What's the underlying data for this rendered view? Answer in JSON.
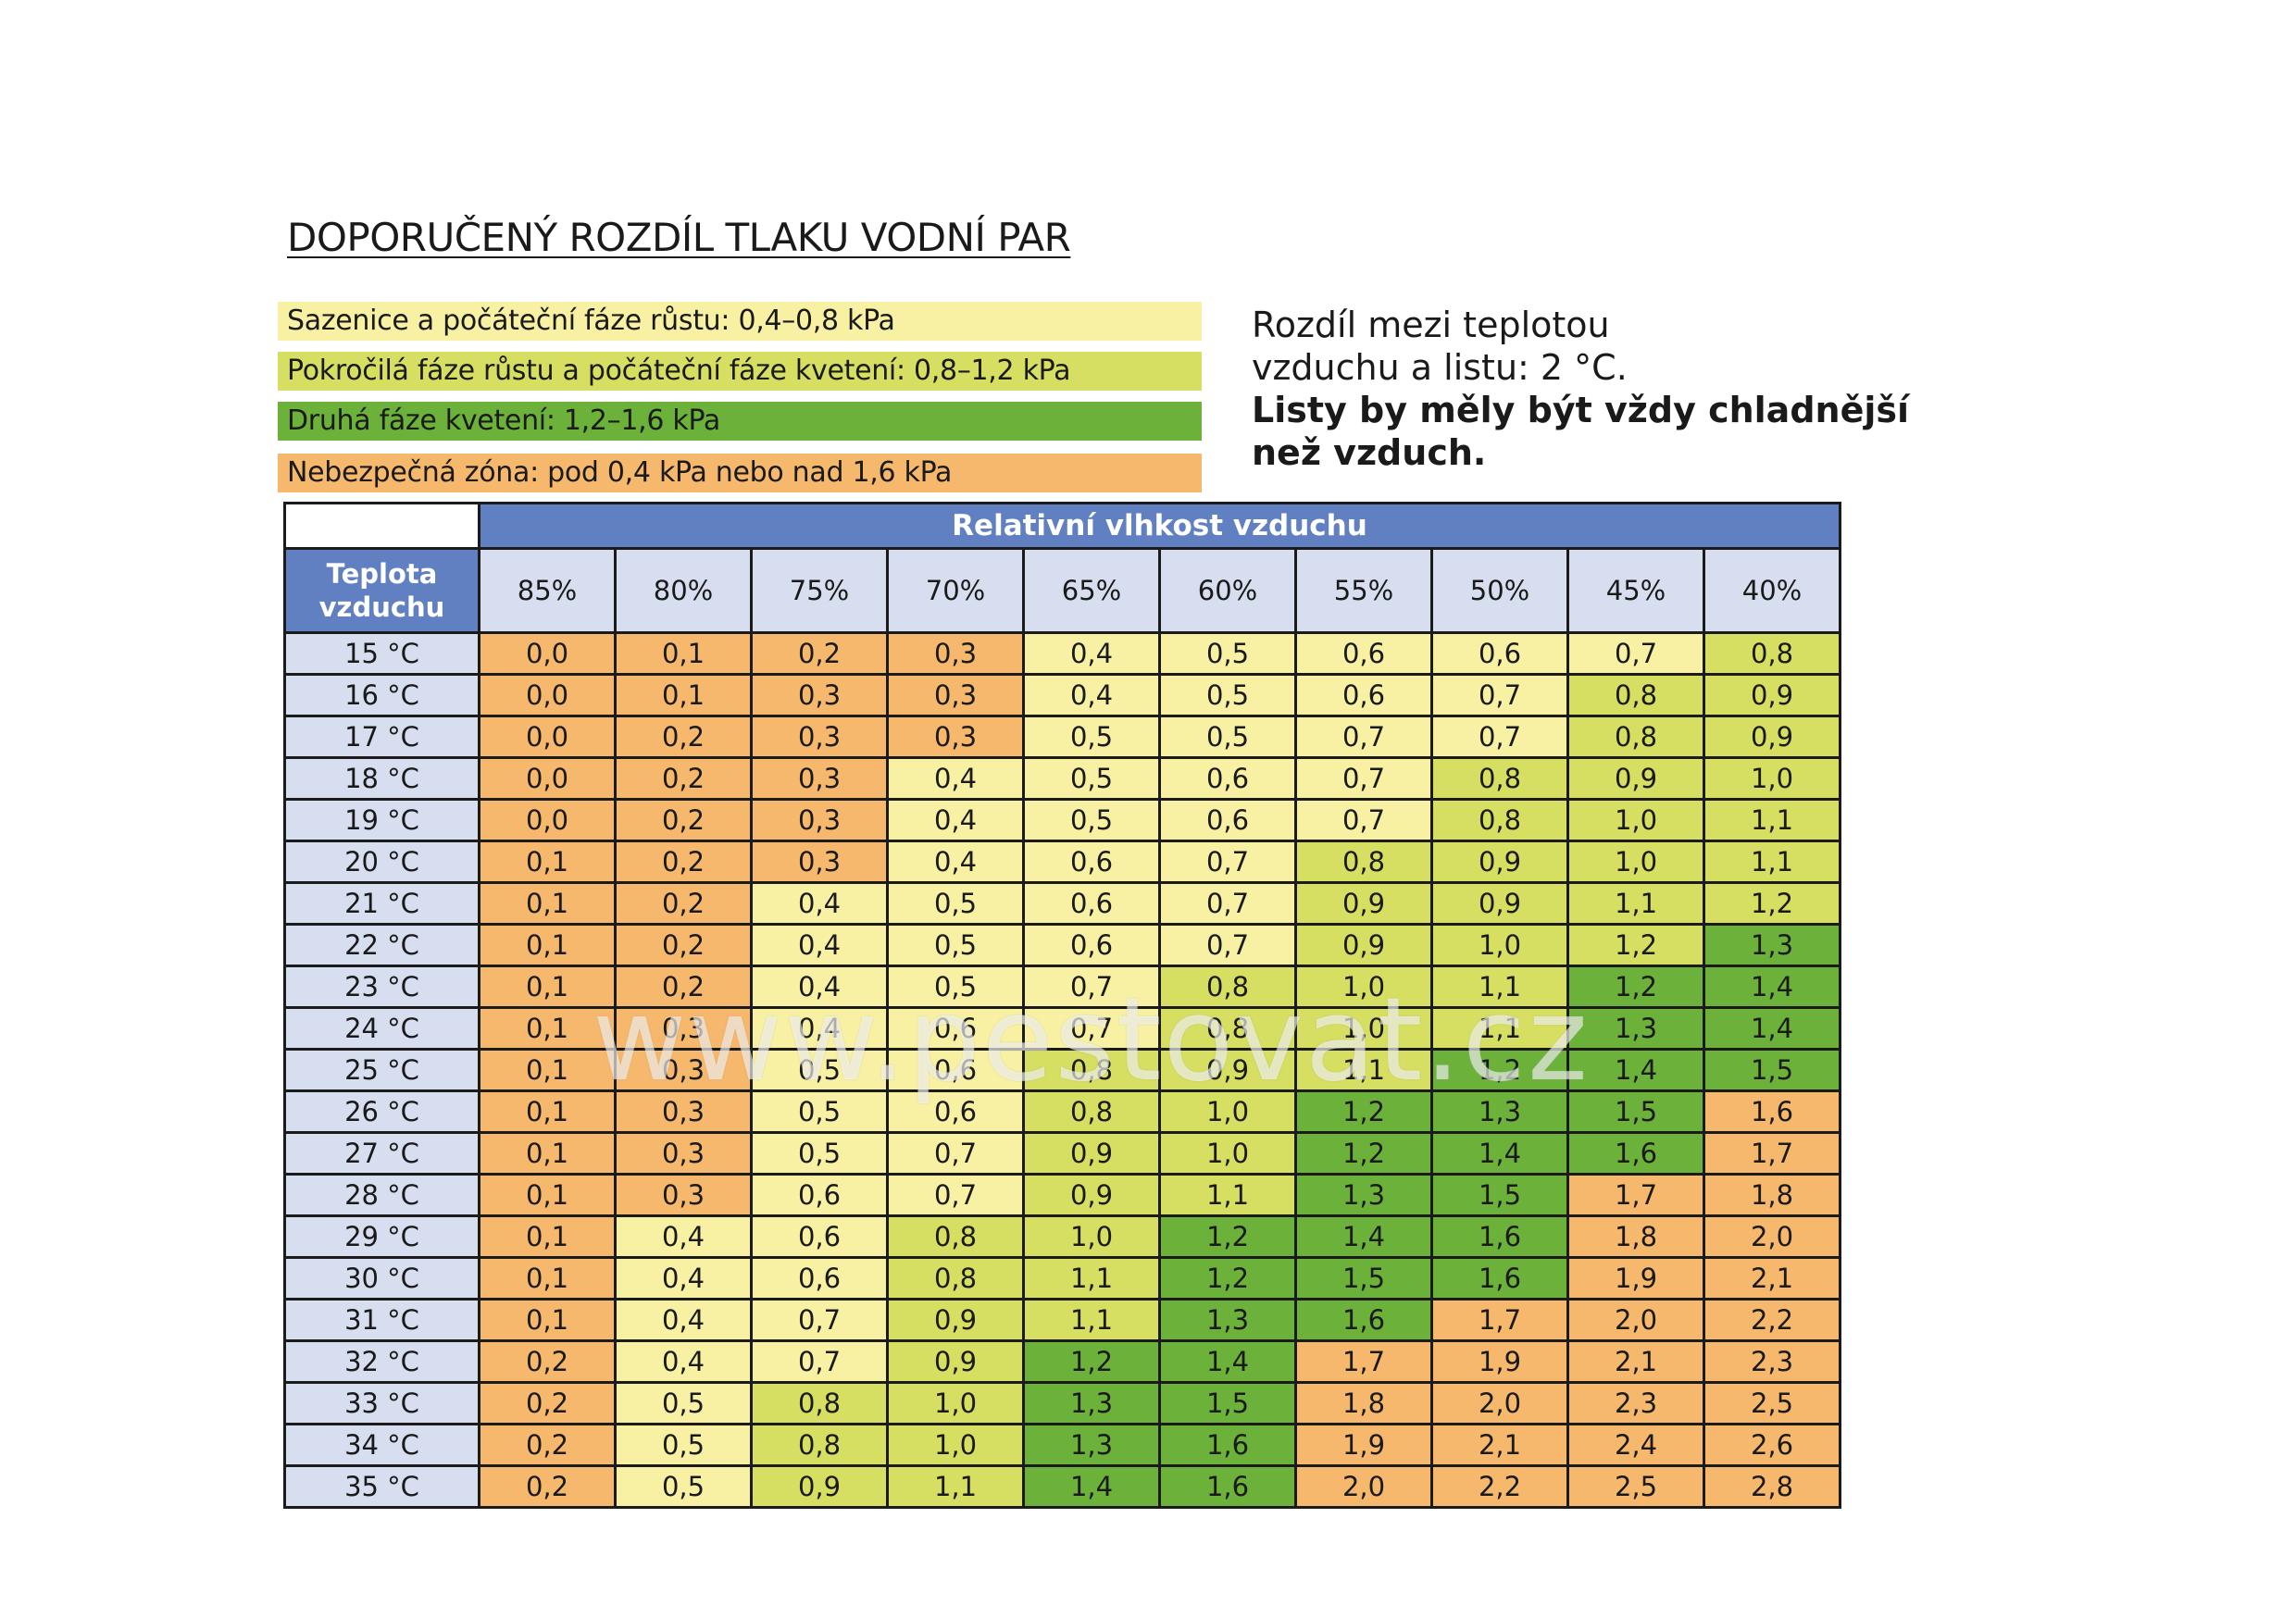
{
  "title": "DOPORUČENÝ ROZDÍL TLAKU VODNÍ PAR",
  "legend": [
    {
      "label": "Sazenice a počáteční fáze růstu: 0,4–0,8 kPa",
      "color": "#f8f1a4"
    },
    {
      "label": "Pokročilá fáze růstu a počáteční fáze kvetení: 0,8–1,2 kPa",
      "color": "#d6df62"
    },
    {
      "label": "Druhá fáze kvetení: 1,2–1,6 kPa",
      "color": "#6cb23a"
    },
    {
      "label": "Nebezpečná zóna: pod 0,4 kPa nebo nad 1,6 kPa",
      "color": "#f6b86c"
    }
  ],
  "note": {
    "line1": "Rozdíl mezi teplotou",
    "line2": "vzduchu a listu: 2 °C.",
    "bold": "Listy by měly být vždy chladnější než vzduch."
  },
  "table": {
    "group_header": "Relativní vlhkost vzduchu",
    "row_header_line1": "Teplota",
    "row_header_line2": "vzduchu",
    "columns": [
      "85%",
      "80%",
      "75%",
      "70%",
      "65%",
      "60%",
      "55%",
      "50%",
      "45%",
      "40%"
    ],
    "zone_colors": {
      "0": "#f6b86c",
      "1": "#f8f1a4",
      "2": "#d6df62",
      "3": "#6cb23a"
    },
    "rows": [
      {
        "temp": "15 °C",
        "values": [
          "0,0",
          "0,1",
          "0,2",
          "0,3",
          "0,4",
          "0,5",
          "0,6",
          "0,6",
          "0,7",
          "0,8"
        ],
        "zones": [
          0,
          0,
          0,
          0,
          1,
          1,
          1,
          1,
          1,
          2
        ]
      },
      {
        "temp": "16 °C",
        "values": [
          "0,0",
          "0,1",
          "0,3",
          "0,3",
          "0,4",
          "0,5",
          "0,6",
          "0,7",
          "0,8",
          "0,9"
        ],
        "zones": [
          0,
          0,
          0,
          0,
          1,
          1,
          1,
          1,
          2,
          2
        ]
      },
      {
        "temp": "17 °C",
        "values": [
          "0,0",
          "0,2",
          "0,3",
          "0,3",
          "0,5",
          "0,5",
          "0,7",
          "0,7",
          "0,8",
          "0,9"
        ],
        "zones": [
          0,
          0,
          0,
          0,
          1,
          1,
          1,
          1,
          2,
          2
        ]
      },
      {
        "temp": "18 °C",
        "values": [
          "0,0",
          "0,2",
          "0,3",
          "0,4",
          "0,5",
          "0,6",
          "0,7",
          "0,8",
          "0,9",
          "1,0"
        ],
        "zones": [
          0,
          0,
          0,
          1,
          1,
          1,
          1,
          2,
          2,
          2
        ]
      },
      {
        "temp": "19 °C",
        "values": [
          "0,0",
          "0,2",
          "0,3",
          "0,4",
          "0,5",
          "0,6",
          "0,7",
          "0,8",
          "1,0",
          "1,1"
        ],
        "zones": [
          0,
          0,
          0,
          1,
          1,
          1,
          1,
          2,
          2,
          2
        ]
      },
      {
        "temp": "20 °C",
        "values": [
          "0,1",
          "0,2",
          "0,3",
          "0,4",
          "0,6",
          "0,7",
          "0,8",
          "0,9",
          "1,0",
          "1,1"
        ],
        "zones": [
          0,
          0,
          0,
          1,
          1,
          1,
          2,
          2,
          2,
          2
        ]
      },
      {
        "temp": "21 °C",
        "values": [
          "0,1",
          "0,2",
          "0,4",
          "0,5",
          "0,6",
          "0,7",
          "0,9",
          "0,9",
          "1,1",
          "1,2"
        ],
        "zones": [
          0,
          0,
          1,
          1,
          1,
          1,
          2,
          2,
          2,
          2
        ]
      },
      {
        "temp": "22 °C",
        "values": [
          "0,1",
          "0,2",
          "0,4",
          "0,5",
          "0,6",
          "0,7",
          "0,9",
          "1,0",
          "1,2",
          "1,3"
        ],
        "zones": [
          0,
          0,
          1,
          1,
          1,
          1,
          2,
          2,
          2,
          3
        ]
      },
      {
        "temp": "23 °C",
        "values": [
          "0,1",
          "0,2",
          "0,4",
          "0,5",
          "0,7",
          "0,8",
          "1,0",
          "1,1",
          "1,2",
          "1,4"
        ],
        "zones": [
          0,
          0,
          1,
          1,
          1,
          2,
          2,
          2,
          3,
          3
        ]
      },
      {
        "temp": "24 °C",
        "values": [
          "0,1",
          "0,3",
          "0,4",
          "0,6",
          "0,7",
          "0,8",
          "1,0",
          "1,1",
          "1,3",
          "1,4"
        ],
        "zones": [
          0,
          0,
          1,
          1,
          1,
          2,
          2,
          2,
          3,
          3
        ]
      },
      {
        "temp": "25 °C",
        "values": [
          "0,1",
          "0,3",
          "0,5",
          "0,6",
          "0,8",
          "0,9",
          "1,1",
          "1,2",
          "1,4",
          "1,5"
        ],
        "zones": [
          0,
          0,
          1,
          1,
          2,
          2,
          2,
          3,
          3,
          3
        ]
      },
      {
        "temp": "26 °C",
        "values": [
          "0,1",
          "0,3",
          "0,5",
          "0,6",
          "0,8",
          "1,0",
          "1,2",
          "1,3",
          "1,5",
          "1,6"
        ],
        "zones": [
          0,
          0,
          1,
          1,
          2,
          2,
          3,
          3,
          3,
          0
        ]
      },
      {
        "temp": "27 °C",
        "values": [
          "0,1",
          "0,3",
          "0,5",
          "0,7",
          "0,9",
          "1,0",
          "1,2",
          "1,4",
          "1,6",
          "1,7"
        ],
        "zones": [
          0,
          0,
          1,
          1,
          2,
          2,
          3,
          3,
          3,
          0
        ]
      },
      {
        "temp": "28 °C",
        "values": [
          "0,1",
          "0,3",
          "0,6",
          "0,7",
          "0,9",
          "1,1",
          "1,3",
          "1,5",
          "1,7",
          "1,8"
        ],
        "zones": [
          0,
          0,
          1,
          1,
          2,
          2,
          3,
          3,
          0,
          0
        ]
      },
      {
        "temp": "29 °C",
        "values": [
          "0,1",
          "0,4",
          "0,6",
          "0,8",
          "1,0",
          "1,2",
          "1,4",
          "1,6",
          "1,8",
          "2,0"
        ],
        "zones": [
          0,
          1,
          1,
          2,
          2,
          3,
          3,
          3,
          0,
          0
        ]
      },
      {
        "temp": "30 °C",
        "values": [
          "0,1",
          "0,4",
          "0,6",
          "0,8",
          "1,1",
          "1,2",
          "1,5",
          "1,6",
          "1,9",
          "2,1"
        ],
        "zones": [
          0,
          1,
          1,
          2,
          2,
          3,
          3,
          3,
          0,
          0
        ]
      },
      {
        "temp": "31 °C",
        "values": [
          "0,1",
          "0,4",
          "0,7",
          "0,9",
          "1,1",
          "1,3",
          "1,6",
          "1,7",
          "2,0",
          "2,2"
        ],
        "zones": [
          0,
          1,
          1,
          2,
          2,
          3,
          3,
          0,
          0,
          0
        ]
      },
      {
        "temp": "32 °C",
        "values": [
          "0,2",
          "0,4",
          "0,7",
          "0,9",
          "1,2",
          "1,4",
          "1,7",
          "1,9",
          "2,1",
          "2,3"
        ],
        "zones": [
          0,
          1,
          1,
          2,
          3,
          3,
          0,
          0,
          0,
          0
        ]
      },
      {
        "temp": "33 °C",
        "values": [
          "0,2",
          "0,5",
          "0,8",
          "1,0",
          "1,3",
          "1,5",
          "1,8",
          "2,0",
          "2,3",
          "2,5"
        ],
        "zones": [
          0,
          1,
          2,
          2,
          3,
          3,
          0,
          0,
          0,
          0
        ]
      },
      {
        "temp": "34 °C",
        "values": [
          "0,2",
          "0,5",
          "0,8",
          "1,0",
          "1,3",
          "1,6",
          "1,9",
          "2,1",
          "2,4",
          "2,6"
        ],
        "zones": [
          0,
          1,
          2,
          2,
          3,
          3,
          0,
          0,
          0,
          0
        ]
      },
      {
        "temp": "35 °C",
        "values": [
          "0,2",
          "0,5",
          "0,9",
          "1,1",
          "1,4",
          "1,6",
          "2,0",
          "2,2",
          "2,5",
          "2,8"
        ],
        "zones": [
          0,
          1,
          2,
          2,
          3,
          3,
          0,
          0,
          0,
          0
        ]
      }
    ]
  },
  "watermark": "www.pestovat.cz"
}
